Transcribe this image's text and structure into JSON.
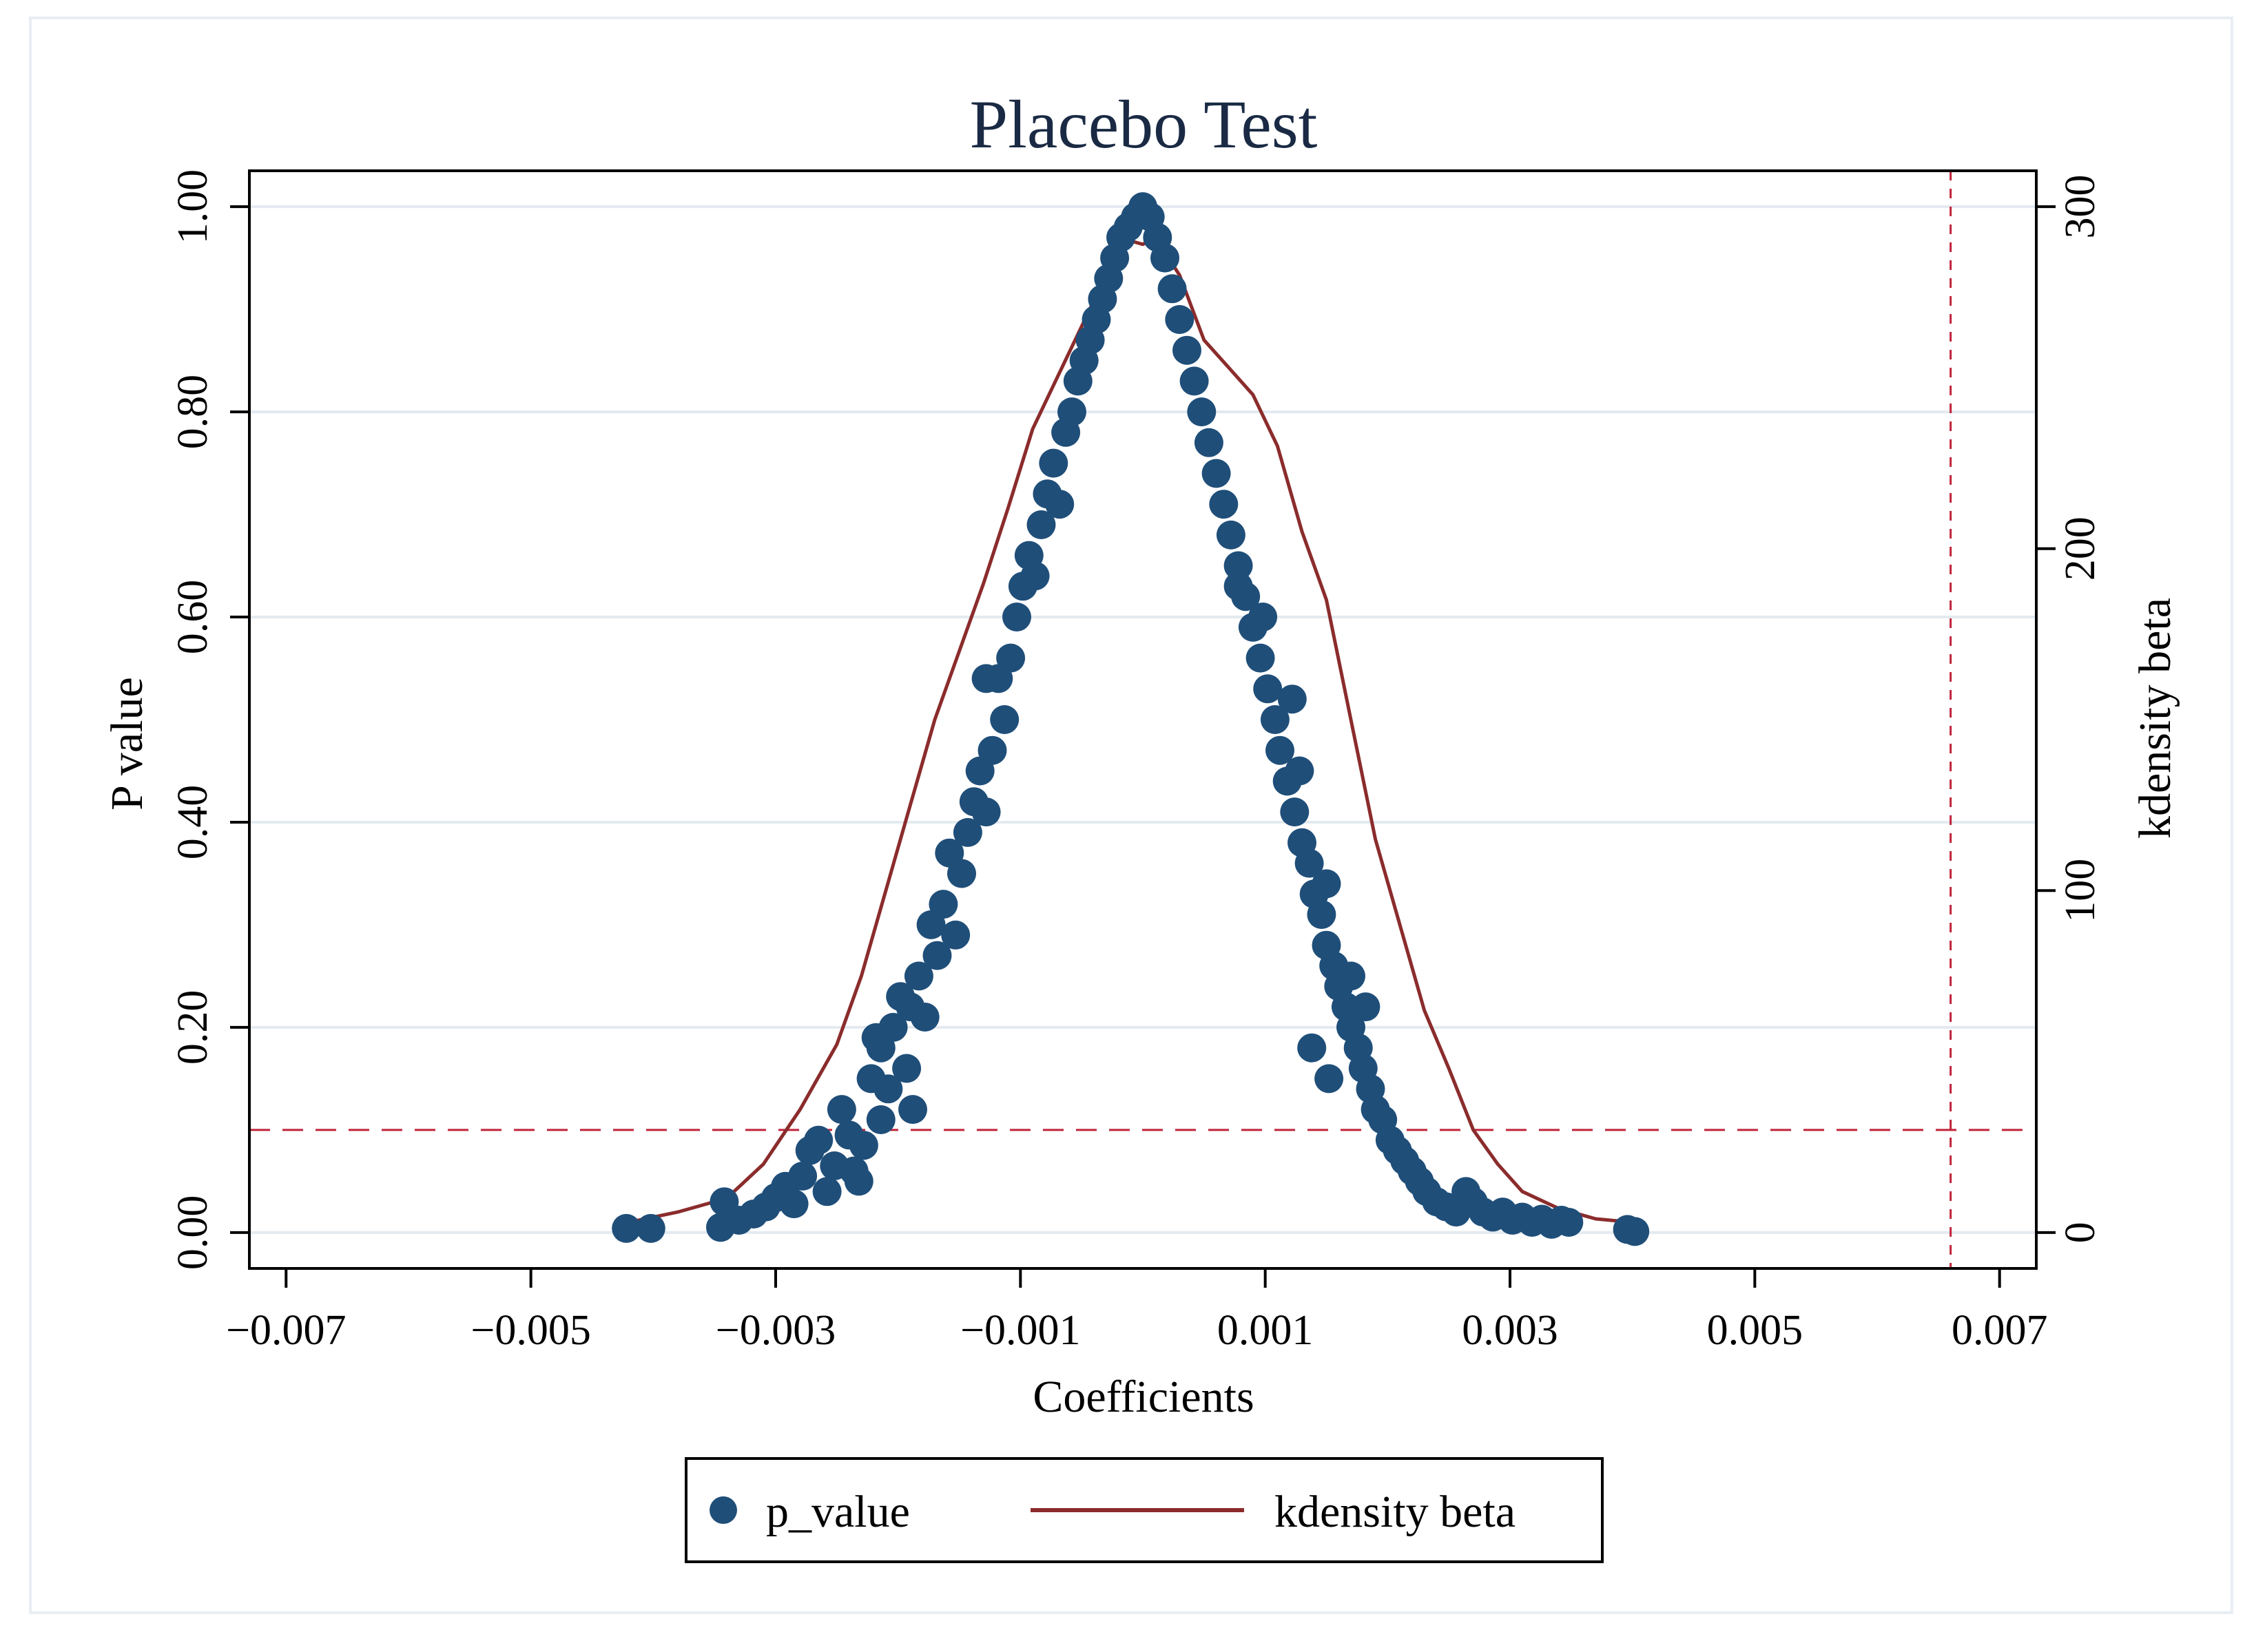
{
  "chart_data": {
    "type": "scatter",
    "title": "Placebo Test",
    "xlabel": "Coefficients",
    "ylabel_left": "P value",
    "ylabel_right": "kdensity beta",
    "xlim": [
      -0.0073,
      0.0073
    ],
    "ylim_left": [
      -0.035,
      1.035
    ],
    "ylim_right": [
      -10.5,
      310.5
    ],
    "x_ticks": [
      -0.007,
      -0.005,
      -0.003,
      -0.001,
      0.001,
      0.003,
      0.005,
      0.007
    ],
    "x_tick_labels": [
      "−0.007",
      "−0.005",
      "−0.003",
      "−0.001",
      "0.001",
      "0.003",
      "0.005",
      "0.007"
    ],
    "y_left_ticks": [
      0,
      0.2,
      0.4,
      0.6,
      0.8,
      1.0
    ],
    "y_left_tick_labels": [
      "0.00",
      "0.20",
      "0.40",
      "0.60",
      "0.80",
      "1.00"
    ],
    "y_right_ticks": [
      0,
      100,
      200,
      300
    ],
    "y_right_tick_labels": [
      "0",
      "100",
      "200",
      "300"
    ],
    "grid": true,
    "reference_lines": {
      "horizontal_p": 0.1,
      "vertical_x": 0.0066
    },
    "series": [
      {
        "name": "p_value",
        "kind": "scatter",
        "color": "#1f4e79",
        "points": [
          [
            -0.00422,
            0.004
          ],
          [
            -0.00402,
            0.004
          ],
          [
            -0.00345,
            0.005
          ],
          [
            -0.00342,
            0.03
          ],
          [
            -0.0033,
            0.012
          ],
          [
            -0.00318,
            0.018
          ],
          [
            -0.00308,
            0.025
          ],
          [
            -0.003,
            0.034
          ],
          [
            -0.00292,
            0.045
          ],
          [
            -0.00285,
            0.028
          ],
          [
            -0.00278,
            0.055
          ],
          [
            -0.00272,
            0.08
          ],
          [
            -0.00265,
            0.09
          ],
          [
            -0.00258,
            0.04
          ],
          [
            -0.00252,
            0.065
          ],
          [
            -0.00246,
            0.12
          ],
          [
            -0.0024,
            0.095
          ],
          [
            -0.00236,
            0.06
          ],
          [
            -0.00232,
            0.05
          ],
          [
            -0.00228,
            0.085
          ],
          [
            -0.00222,
            0.15
          ],
          [
            -0.00218,
            0.19
          ],
          [
            -0.00214,
            0.11
          ],
          [
            -0.00208,
            0.14
          ],
          [
            -0.00204,
            0.2
          ],
          [
            -0.00198,
            0.23
          ],
          [
            -0.00193,
            0.16
          ],
          [
            -0.00188,
            0.12
          ],
          [
            -0.00183,
            0.25
          ],
          [
            -0.00178,
            0.21
          ],
          [
            -0.00173,
            0.3
          ],
          [
            -0.00168,
            0.27
          ],
          [
            -0.00163,
            0.32
          ],
          [
            -0.00158,
            0.37
          ],
          [
            -0.00153,
            0.29
          ],
          [
            -0.00148,
            0.35
          ],
          [
            -0.00143,
            0.39
          ],
          [
            -0.00138,
            0.42
          ],
          [
            -0.00133,
            0.45
          ],
          [
            -0.00128,
            0.41
          ],
          [
            -0.00123,
            0.47
          ],
          [
            -0.00118,
            0.54
          ],
          [
            -0.00113,
            0.5
          ],
          [
            -0.00108,
            0.56
          ],
          [
            -0.00103,
            0.6
          ],
          [
            -0.00098,
            0.63
          ],
          [
            -0.00093,
            0.66
          ],
          [
            -0.00088,
            0.64
          ],
          [
            -0.00083,
            0.69
          ],
          [
            -0.00078,
            0.72
          ],
          [
            -0.00073,
            0.75
          ],
          [
            -0.00068,
            0.71
          ],
          [
            -0.00063,
            0.78
          ],
          [
            -0.00058,
            0.8
          ],
          [
            -0.00053,
            0.83
          ],
          [
            -0.00048,
            0.85
          ],
          [
            -0.00043,
            0.87
          ],
          [
            -0.00038,
            0.89
          ],
          [
            -0.00033,
            0.91
          ],
          [
            -0.00028,
            0.93
          ],
          [
            -0.00023,
            0.95
          ],
          [
            -0.00018,
            0.97
          ],
          [
            -0.00012,
            0.98
          ],
          [
            -6e-05,
            0.99
          ],
          [
            0.0,
            1.0
          ],
          [
            6e-05,
            0.99
          ],
          [
            0.00012,
            0.97
          ],
          [
            0.00018,
            0.95
          ],
          [
            0.00024,
            0.92
          ],
          [
            0.0003,
            0.89
          ],
          [
            0.00036,
            0.86
          ],
          [
            0.00042,
            0.83
          ],
          [
            0.00048,
            0.8
          ],
          [
            0.00054,
            0.77
          ],
          [
            0.0006,
            0.74
          ],
          [
            0.00066,
            0.71
          ],
          [
            0.00072,
            0.68
          ],
          [
            0.00078,
            0.65
          ],
          [
            0.00084,
            0.62
          ],
          [
            0.0009,
            0.59
          ],
          [
            0.00096,
            0.56
          ],
          [
            0.00102,
            0.53
          ],
          [
            0.00108,
            0.5
          ],
          [
            0.00112,
            0.47
          ],
          [
            0.00118,
            0.44
          ],
          [
            0.00124,
            0.41
          ],
          [
            0.0013,
            0.38
          ],
          [
            0.00136,
            0.36
          ],
          [
            0.0014,
            0.33
          ],
          [
            0.00146,
            0.31
          ],
          [
            0.0015,
            0.28
          ],
          [
            0.00156,
            0.26
          ],
          [
            0.0016,
            0.24
          ],
          [
            0.00166,
            0.22
          ],
          [
            0.0017,
            0.2
          ],
          [
            0.00176,
            0.18
          ],
          [
            0.0018,
            0.16
          ],
          [
            0.00186,
            0.14
          ],
          [
            0.0019,
            0.12
          ],
          [
            0.00196,
            0.11
          ],
          [
            0.00202,
            0.09
          ],
          [
            0.00208,
            0.08
          ],
          [
            0.00214,
            0.07
          ],
          [
            0.0022,
            0.06
          ],
          [
            0.00226,
            0.05
          ],
          [
            0.00232,
            0.04
          ],
          [
            0.0024,
            0.03
          ],
          [
            0.00248,
            0.025
          ],
          [
            0.00256,
            0.02
          ],
          [
            0.00264,
            0.04
          ],
          [
            0.0027,
            0.03
          ],
          [
            0.00278,
            0.02
          ],
          [
            0.00286,
            0.015
          ],
          [
            0.00294,
            0.02
          ],
          [
            0.00302,
            0.012
          ],
          [
            0.0031,
            0.015
          ],
          [
            0.00318,
            0.01
          ],
          [
            0.00326,
            0.013
          ],
          [
            0.00334,
            0.008
          ],
          [
            0.00342,
            0.012
          ],
          [
            0.00348,
            0.01
          ],
          [
            0.00396,
            0.003
          ],
          [
            0.00402,
            0.001
          ],
          [
            0.00128,
            0.45
          ],
          [
            0.00122,
            0.52
          ],
          [
            0.0015,
            0.34
          ],
          [
            0.00138,
            0.18
          ],
          [
            0.00152,
            0.15
          ],
          [
            0.0017,
            0.25
          ],
          [
            0.00182,
            0.22
          ],
          [
            0.00098,
            0.6
          ],
          [
            0.00078,
            0.63
          ],
          [
            -0.00128,
            0.54
          ],
          [
            -0.0019,
            0.22
          ],
          [
            -0.00214,
            0.18
          ]
        ]
      },
      {
        "name": "kdensity beta",
        "kind": "line",
        "color": "#8b2c2c",
        "points": [
          [
            -0.0042,
            3
          ],
          [
            -0.0038,
            6
          ],
          [
            -0.0034,
            10
          ],
          [
            -0.0031,
            20
          ],
          [
            -0.0028,
            36
          ],
          [
            -0.0025,
            55
          ],
          [
            -0.0023,
            75
          ],
          [
            -0.0021,
            100
          ],
          [
            -0.0019,
            125
          ],
          [
            -0.0017,
            150
          ],
          [
            -0.0015,
            170
          ],
          [
            -0.0013,
            190
          ],
          [
            -0.0011,
            212
          ],
          [
            -0.0009,
            235
          ],
          [
            -0.0007,
            250
          ],
          [
            -0.0005,
            265
          ],
          [
            -0.0003,
            280
          ],
          [
            -0.0001,
            290
          ],
          [
            0.0,
            289
          ],
          [
            0.0001,
            291
          ],
          [
            0.0003,
            280
          ],
          [
            0.0005,
            261
          ],
          [
            0.0007,
            253
          ],
          [
            0.0009,
            245
          ],
          [
            0.0011,
            230
          ],
          [
            0.0013,
            205
          ],
          [
            0.0015,
            185
          ],
          [
            0.0017,
            150
          ],
          [
            0.0019,
            115
          ],
          [
            0.0021,
            90
          ],
          [
            0.0023,
            65
          ],
          [
            0.0025,
            48
          ],
          [
            0.0027,
            30
          ],
          [
            0.0029,
            20
          ],
          [
            0.0031,
            12
          ],
          [
            0.0034,
            7
          ],
          [
            0.0037,
            4
          ],
          [
            0.004,
            3
          ]
        ]
      }
    ],
    "legend": {
      "position": "bottom-center",
      "entries": [
        {
          "label": "p_value",
          "marker": "circle"
        },
        {
          "label": "kdensity beta",
          "marker": "line"
        }
      ]
    }
  }
}
